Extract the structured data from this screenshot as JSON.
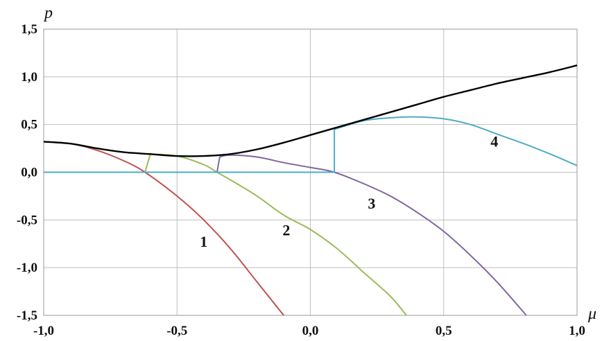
{
  "chart_data": {
    "type": "line",
    "xlabel": "μ",
    "ylabel": "p",
    "xlim": [
      -1.0,
      1.0
    ],
    "ylim": [
      -1.5,
      1.5
    ],
    "xticks": [
      "-1,0",
      "-0,5",
      "0,0",
      "0,5",
      "1,0"
    ],
    "yticks": [
      "1,5",
      "1,0",
      "0,5",
      "0,0",
      "-0,5",
      "-1,0",
      "-1,5"
    ],
    "grid": true,
    "colors": {
      "curve_1": "#c0504d",
      "curve_2": "#9bbb59",
      "curve_3": "#8064a2",
      "curve_4": "#4bacc6",
      "envelope": "#000000",
      "grid": "#bfbfbf"
    },
    "series": [
      {
        "name": "1",
        "color": "#c0504d",
        "x": [
          -1.0,
          -0.9,
          -0.8,
          -0.7,
          -0.62,
          -0.5,
          -0.4,
          -0.3,
          -0.2,
          -0.1
        ],
        "y": [
          0.32,
          0.3,
          0.23,
          0.12,
          0.0,
          -0.25,
          -0.5,
          -0.8,
          -1.15,
          -1.5
        ]
      },
      {
        "name": "2",
        "color": "#9bbb59",
        "x": [
          -0.62,
          -0.6,
          -0.5,
          -0.4,
          -0.35,
          -0.3,
          -0.2,
          -0.1,
          0.0,
          0.1,
          0.2,
          0.3,
          0.36
        ],
        "y": [
          0.0,
          0.19,
          0.17,
          0.08,
          0.0,
          -0.08,
          -0.25,
          -0.45,
          -0.6,
          -0.8,
          -1.05,
          -1.3,
          -1.5
        ]
      },
      {
        "name": "3",
        "color": "#8064a2",
        "x": [
          -0.35,
          -0.34,
          -0.3,
          -0.2,
          -0.1,
          0.0,
          0.09,
          0.2,
          0.3,
          0.4,
          0.5,
          0.6,
          0.7,
          0.81
        ],
        "y": [
          0.0,
          0.16,
          0.18,
          0.16,
          0.1,
          0.05,
          0.0,
          -0.12,
          -0.25,
          -0.42,
          -0.62,
          -0.87,
          -1.15,
          -1.5
        ]
      },
      {
        "name": "4",
        "color": "#4bacc6",
        "x": [
          -1.0,
          -0.5,
          0.0,
          0.09,
          0.09,
          0.2,
          0.3,
          0.4,
          0.5,
          0.6,
          0.7,
          0.8,
          0.9,
          1.0
        ],
        "y": [
          0.0,
          0.0,
          0.0,
          0.0,
          0.45,
          0.54,
          0.57,
          0.58,
          0.56,
          0.5,
          0.4,
          0.3,
          0.19,
          0.07
        ]
      },
      {
        "color": "#000000",
        "x": [
          -1.0,
          -0.9,
          -0.8,
          -0.7,
          -0.6,
          -0.5,
          -0.4,
          -0.3,
          -0.2,
          -0.1,
          0.0,
          0.1,
          0.2,
          0.3,
          0.4,
          0.5,
          0.6,
          0.7,
          0.8,
          0.9,
          1.0
        ],
        "y": [
          0.32,
          0.3,
          0.25,
          0.21,
          0.19,
          0.17,
          0.17,
          0.19,
          0.24,
          0.31,
          0.39,
          0.47,
          0.55,
          0.63,
          0.71,
          0.79,
          0.86,
          0.93,
          0.99,
          1.05,
          1.12
        ]
      }
    ],
    "curve_labels": [
      {
        "text": "1",
        "x": -0.4,
        "y": -0.78
      },
      {
        "text": "2",
        "x": -0.09,
        "y": -0.66
      },
      {
        "text": "3",
        "x": 0.23,
        "y": -0.38
      },
      {
        "text": "4",
        "x": 0.69,
        "y": 0.27
      }
    ]
  }
}
